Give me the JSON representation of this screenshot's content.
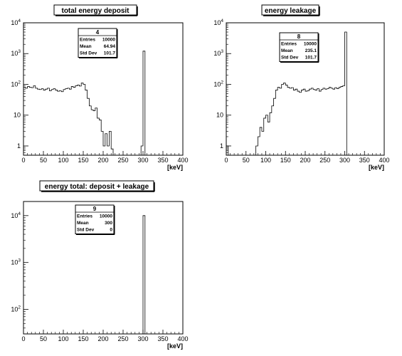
{
  "chart_data": [
    {
      "type": "histogram",
      "title": "total energy deposit",
      "xlabel": "[keV]",
      "log_y": true,
      "xlim": [
        0,
        400
      ],
      "ylim": [
        0.5,
        10000
      ],
      "x_ticks": [
        "0",
        "50",
        "100",
        "150",
        "200",
        "250",
        "300",
        "350",
        "400"
      ],
      "y_ticks": [
        {
          "v": 1,
          "base": "1",
          "exp": ""
        },
        {
          "v": 10,
          "base": "10",
          "exp": ""
        },
        {
          "v": 100,
          "base": "10",
          "exp": "2"
        },
        {
          "v": 1000,
          "base": "10",
          "exp": "3"
        },
        {
          "v": 10000,
          "base": "10",
          "exp": "4"
        }
      ],
      "stats": {
        "name": "4",
        "rows": [
          [
            "Entries",
            "10000"
          ],
          [
            "Mean",
            "64.94"
          ],
          [
            "Std Dev",
            "101.7"
          ]
        ]
      },
      "bin_width": 5,
      "bins": [
        [
          0,
          80
        ],
        [
          5,
          75
        ],
        [
          10,
          85
        ],
        [
          15,
          80
        ],
        [
          20,
          78
        ],
        [
          25,
          90
        ],
        [
          30,
          75
        ],
        [
          35,
          70
        ],
        [
          40,
          68
        ],
        [
          45,
          72
        ],
        [
          50,
          65
        ],
        [
          55,
          70
        ],
        [
          60,
          75
        ],
        [
          65,
          62
        ],
        [
          70,
          68
        ],
        [
          75,
          72
        ],
        [
          80,
          65
        ],
        [
          85,
          60
        ],
        [
          90,
          62
        ],
        [
          95,
          58
        ],
        [
          100,
          68
        ],
        [
          105,
          72
        ],
        [
          110,
          75
        ],
        [
          115,
          70
        ],
        [
          120,
          85
        ],
        [
          125,
          80
        ],
        [
          130,
          90
        ],
        [
          135,
          95
        ],
        [
          140,
          88
        ],
        [
          145,
          110
        ],
        [
          150,
          100
        ],
        [
          155,
          65
        ],
        [
          160,
          35
        ],
        [
          165,
          20
        ],
        [
          170,
          15
        ],
        [
          175,
          14
        ],
        [
          180,
          17
        ],
        [
          185,
          8
        ],
        [
          190,
          7
        ],
        [
          195,
          3
        ],
        [
          200,
          1
        ],
        [
          205,
          2.5
        ],
        [
          210,
          1
        ],
        [
          215,
          3
        ],
        [
          220,
          0.8
        ],
        [
          295,
          1
        ],
        [
          300,
          1200
        ]
      ]
    },
    {
      "type": "histogram",
      "title": "energy leakage",
      "xlabel": "[keV]",
      "log_y": true,
      "xlim": [
        0,
        400
      ],
      "ylim": [
        0.5,
        10000
      ],
      "x_ticks": [
        "0",
        "50",
        "100",
        "150",
        "200",
        "250",
        "300",
        "350",
        "400"
      ],
      "y_ticks": [
        {
          "v": 1,
          "base": "1",
          "exp": ""
        },
        {
          "v": 10,
          "base": "10",
          "exp": ""
        },
        {
          "v": 100,
          "base": "10",
          "exp": "2"
        },
        {
          "v": 1000,
          "base": "10",
          "exp": "3"
        },
        {
          "v": 10000,
          "base": "10",
          "exp": "4"
        }
      ],
      "stats": {
        "name": "8",
        "rows": [
          [
            "Entries",
            "10000"
          ],
          [
            "Mean",
            "235.1"
          ],
          [
            "Std Dev",
            "101.7"
          ]
        ]
      },
      "bin_width": 5,
      "bins": [
        [
          0,
          1
        ],
        [
          75,
          1
        ],
        [
          80,
          2
        ],
        [
          85,
          4
        ],
        [
          90,
          3
        ],
        [
          95,
          8
        ],
        [
          100,
          10
        ],
        [
          105,
          6
        ],
        [
          110,
          12
        ],
        [
          115,
          20
        ],
        [
          120,
          35
        ],
        [
          125,
          65
        ],
        [
          130,
          80
        ],
        [
          135,
          75
        ],
        [
          140,
          100
        ],
        [
          145,
          110
        ],
        [
          150,
          95
        ],
        [
          155,
          80
        ],
        [
          160,
          75
        ],
        [
          165,
          78
        ],
        [
          170,
          65
        ],
        [
          175,
          70
        ],
        [
          180,
          60
        ],
        [
          185,
          55
        ],
        [
          190,
          65
        ],
        [
          195,
          70
        ],
        [
          200,
          60
        ],
        [
          205,
          62
        ],
        [
          210,
          70
        ],
        [
          215,
          75
        ],
        [
          220,
          68
        ],
        [
          225,
          65
        ],
        [
          230,
          72
        ],
        [
          235,
          60
        ],
        [
          240,
          68
        ],
        [
          245,
          75
        ],
        [
          250,
          70
        ],
        [
          255,
          72
        ],
        [
          260,
          80
        ],
        [
          265,
          75
        ],
        [
          270,
          70
        ],
        [
          275,
          78
        ],
        [
          280,
          72
        ],
        [
          285,
          80
        ],
        [
          290,
          85
        ],
        [
          295,
          90
        ],
        [
          300,
          5000
        ]
      ]
    },
    {
      "type": "histogram",
      "title": "energy total: deposit + leakage",
      "xlabel": "[keV]",
      "log_y": true,
      "xlim": [
        0,
        400
      ],
      "ylim": [
        30,
        20000
      ],
      "x_ticks": [
        "0",
        "50",
        "100",
        "150",
        "200",
        "250",
        "300",
        "350",
        "400"
      ],
      "y_ticks": [
        {
          "v": 100,
          "base": "10",
          "exp": "2"
        },
        {
          "v": 1000,
          "base": "10",
          "exp": "3"
        },
        {
          "v": 10000,
          "base": "10",
          "exp": "4"
        }
      ],
      "stats": {
        "name": "9",
        "rows": [
          [
            "Entries",
            "10000"
          ],
          [
            "Mean",
            "300"
          ],
          [
            "Std Dev",
            "0"
          ]
        ]
      },
      "bin_width": 5,
      "bins": [
        [
          300,
          10000
        ]
      ]
    }
  ]
}
